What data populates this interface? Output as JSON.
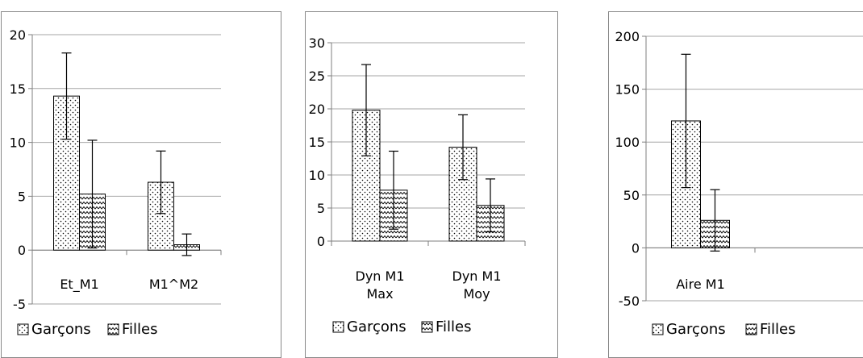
{
  "colors": {
    "grid": "#a6a6a6",
    "axis": "#7f7f7f",
    "border": "#888888",
    "mark": "#000000",
    "text": "#000000"
  },
  "chart_data": [
    {
      "type": "bar",
      "categories": [
        [
          "Et_M1"
        ],
        [
          "M1^M2"
        ]
      ],
      "ylim": [
        -5,
        20
      ],
      "yticks": [
        -5,
        0,
        5,
        10,
        15,
        20
      ],
      "grid": true,
      "legend_position": "bottom",
      "series": [
        {
          "name": "Garçons",
          "pattern": "dots",
          "values": [
            14.3,
            6.3
          ],
          "errors": [
            4.0,
            2.9
          ]
        },
        {
          "name": "Filles",
          "pattern": "waves",
          "values": [
            5.2,
            0.5
          ],
          "errors": [
            5.0,
            1.0
          ]
        }
      ]
    },
    {
      "type": "bar",
      "categories": [
        [
          "Dyn M1",
          "Max"
        ],
        [
          "Dyn M1",
          "Moy"
        ]
      ],
      "ylim": [
        0,
        30
      ],
      "yticks": [
        0,
        5,
        10,
        15,
        20,
        25,
        30
      ],
      "grid": true,
      "legend_position": "bottom",
      "series": [
        {
          "name": "Garçons",
          "pattern": "dots",
          "values": [
            19.8,
            14.2
          ],
          "errors": [
            6.9,
            4.9
          ]
        },
        {
          "name": "Filles",
          "pattern": "waves",
          "values": [
            7.7,
            5.4
          ],
          "errors": [
            5.9,
            4.0
          ]
        }
      ]
    },
    {
      "type": "bar",
      "categories": [
        [
          "Aire M1"
        ],
        []
      ],
      "ylim": [
        -50,
        200
      ],
      "yticks": [
        -50,
        0,
        50,
        100,
        150,
        200
      ],
      "grid": true,
      "legend_position": "bottom",
      "series": [
        {
          "name": "Garçons",
          "pattern": "dots",
          "values": [
            120,
            null
          ],
          "errors": [
            63,
            null
          ]
        },
        {
          "name": "Filles",
          "pattern": "waves",
          "values": [
            26,
            null
          ],
          "errors": [
            29,
            null
          ]
        }
      ]
    }
  ]
}
